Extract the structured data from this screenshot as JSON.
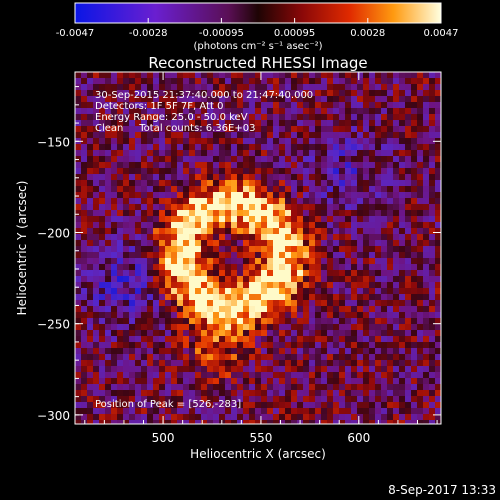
{
  "colorbar": {
    "tick_labels": [
      "-0.0047",
      "-0.0028",
      "-0.00095",
      "0.00095",
      "0.0028",
      "0.0047"
    ],
    "unit_label": "(photons cm⁻² s⁻¹ asec⁻²)",
    "range": [
      -0.0047,
      0.0047
    ]
  },
  "image": {
    "title": "Reconstructed RHESSI Image",
    "info": {
      "time_range": "30-Sep-2015 21:37:40.000 to 21:47:40.000",
      "detectors": "Detectors: 1F 5F 7F, Att 0",
      "energy": "Energy Range: 25.0 - 50.0 keV",
      "clean": "Clean     Total counts: 6.36E+03"
    },
    "peak_label": "Position of Peak = [526,-283]",
    "peak": [
      526,
      -283
    ]
  },
  "axes": {
    "xlabel": "Heliocentric X (arcsec)",
    "ylabel": "Heliocentric Y (arcsec)",
    "xticks": [
      500,
      550,
      600
    ],
    "yticks": [
      -150,
      -200,
      -250,
      -300
    ],
    "xlim": [
      455,
      642
    ],
    "ylim": [
      -305,
      -112
    ]
  },
  "footer": {
    "timestamp": "8-Sep-2017 13:33"
  },
  "colors": {
    "background": "#000000",
    "foreground": "#ffffff"
  }
}
